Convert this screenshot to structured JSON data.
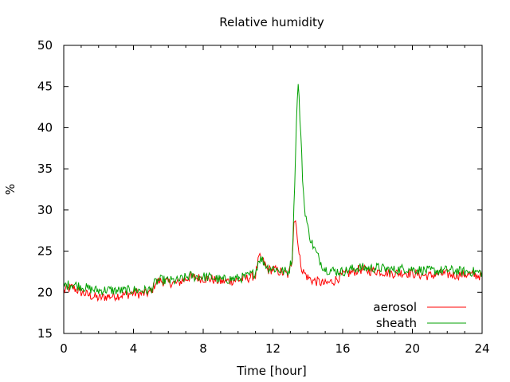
{
  "chart_data": {
    "type": "line",
    "title": "Relative humidity",
    "xlabel": "Time [hour]",
    "ylabel": "%",
    "xlim": [
      0,
      24
    ],
    "ylim": [
      15,
      50
    ],
    "xticks": [
      0,
      4,
      8,
      12,
      16,
      20,
      24
    ],
    "yticks": [
      15,
      20,
      25,
      30,
      35,
      40,
      45,
      50
    ],
    "grid": false,
    "legend_position": "bottom-right",
    "series": [
      {
        "name": "aerosol",
        "color": "#ff0000",
        "x": [
          0,
          0.5,
          1,
          1.5,
          2,
          2.5,
          3,
          3.5,
          4,
          4.5,
          5,
          5.25,
          5.5,
          6,
          6.5,
          7,
          7.25,
          7.5,
          8,
          8.5,
          9,
          9.5,
          10,
          10.5,
          11,
          11.2,
          11.4,
          11.7,
          12,
          12.5,
          12.9,
          13.1,
          13.2,
          13.3,
          13.4,
          13.5,
          13.7,
          14,
          14.3,
          14.6,
          15,
          15.5,
          16,
          16.5,
          17,
          17.5,
          18,
          18.5,
          19,
          19.5,
          20,
          20.5,
          21,
          21.5,
          22,
          22.5,
          23,
          23.5,
          24
        ],
        "y": [
          20.2,
          20.6,
          20.0,
          19.6,
          19.3,
          19.5,
          19.6,
          19.7,
          19.9,
          19.8,
          20.0,
          21.1,
          21.4,
          21.2,
          21.1,
          21.6,
          21.9,
          21.8,
          21.7,
          21.6,
          21.3,
          21.4,
          21.5,
          21.7,
          22.1,
          24.2,
          23.9,
          22.7,
          22.8,
          22.4,
          22.1,
          24.0,
          28.8,
          28.7,
          27.0,
          24.5,
          22.6,
          21.8,
          21.4,
          21.3,
          21.0,
          21.4,
          22.1,
          22.4,
          22.8,
          22.6,
          22.6,
          22.4,
          22.3,
          22.4,
          22.3,
          22.1,
          22.0,
          22.2,
          22.2,
          22.1,
          22.2,
          22.1,
          22.0
        ]
      },
      {
        "name": "sheath",
        "color": "#00a000",
        "x": [
          0,
          0.5,
          1,
          1.5,
          2,
          2.5,
          3,
          3.5,
          4,
          4.5,
          5,
          5.25,
          5.5,
          6,
          6.5,
          7,
          7.25,
          7.5,
          8,
          8.5,
          9,
          9.5,
          10,
          10.5,
          11,
          11.2,
          11.4,
          11.7,
          12,
          12.5,
          12.9,
          13.1,
          13.2,
          13.3,
          13.4,
          13.45,
          13.5,
          13.6,
          13.7,
          13.8,
          14,
          14.2,
          14.5,
          14.8,
          15,
          15.5,
          16,
          16.5,
          17,
          17.5,
          18,
          18.5,
          19,
          19.5,
          20,
          20.5,
          21,
          21.5,
          22,
          22.5,
          23,
          23.5,
          24
        ],
        "y": [
          20.8,
          21.0,
          20.7,
          20.4,
          20.2,
          20.3,
          20.2,
          20.2,
          20.3,
          20.2,
          20.3,
          21.2,
          21.5,
          21.4,
          21.4,
          21.8,
          22.0,
          21.9,
          21.9,
          21.8,
          21.5,
          21.6,
          21.7,
          21.9,
          22.4,
          24.1,
          23.9,
          23.0,
          22.9,
          22.6,
          22.5,
          24.2,
          30.0,
          37.0,
          44.0,
          45.2,
          43.5,
          39.0,
          34.0,
          30.5,
          27.8,
          26.2,
          24.7,
          23.4,
          22.8,
          22.6,
          22.5,
          22.8,
          23.0,
          22.9,
          23.0,
          22.8,
          22.7,
          22.9,
          22.8,
          22.7,
          22.6,
          22.6,
          22.7,
          22.6,
          22.5,
          22.5,
          22.4
        ]
      }
    ]
  }
}
